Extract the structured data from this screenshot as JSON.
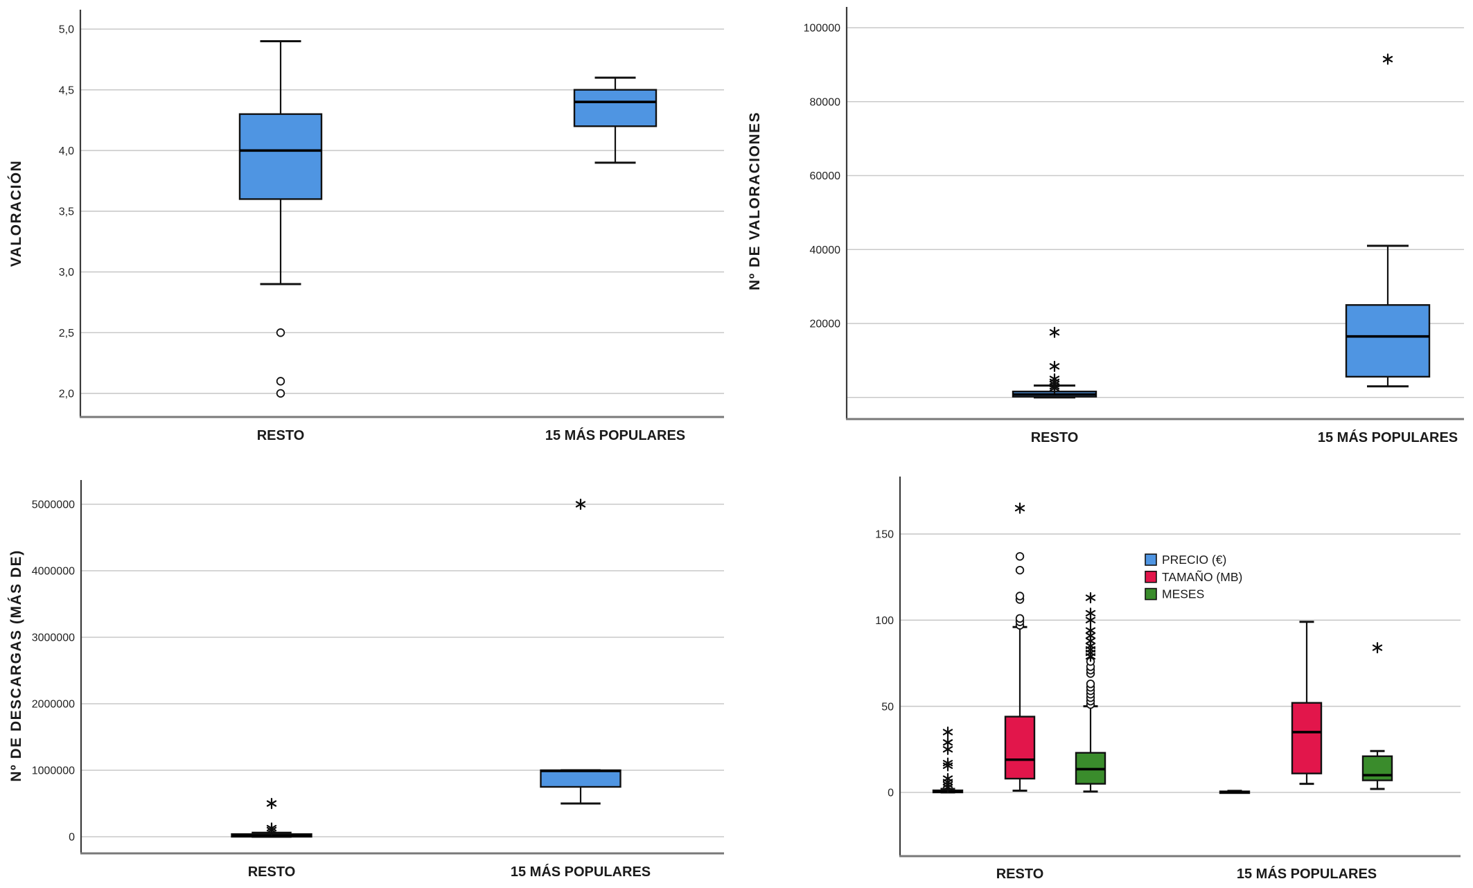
{
  "figure": {
    "background": "#ffffff",
    "grid_color": "#c9c9c9",
    "axis_color": "#3a3a3a",
    "frame_color": "#787878",
    "text_color": "#1a1a1a",
    "box_border_color": "#111111"
  },
  "chart_data": [
    {
      "type": "boxplot",
      "panel": "top-left",
      "ylabel": "VALORACIÓN",
      "xlabel": "",
      "categories": [
        "RESTO",
        "15 MÁS POPULARES"
      ],
      "ytick_values": [
        2.0,
        2.5,
        3.0,
        3.5,
        4.0,
        4.5,
        5.0
      ],
      "ytick_labels": [
        "2,0",
        "2,5",
        "3,0",
        "3,5",
        "4,0",
        "4,5",
        "5,0"
      ],
      "extra_gridlines": [],
      "ylim": [
        1.83,
        5.16
      ],
      "grid": true,
      "legend": null,
      "series": [
        {
          "name": "VALORACIÓN",
          "color": "#4F95E2",
          "boxes": [
            {
              "category": "RESTO",
              "whisker_low": 2.9,
              "q1": 3.6,
              "median": 4.0,
              "q3": 4.3,
              "whisker_high": 4.9,
              "outliers_circle": [
                2.5,
                2.1,
                2.0
              ],
              "outliers_star": []
            },
            {
              "category": "15 MÁS POPULARES",
              "whisker_low": 3.9,
              "q1": 4.2,
              "median": 4.4,
              "q3": 4.5,
              "whisker_high": 4.6,
              "outliers_circle": [],
              "outliers_star": []
            }
          ]
        }
      ]
    },
    {
      "type": "boxplot",
      "panel": "top-right",
      "ylabel": "Nº DE VALORACIONES",
      "xlabel": "",
      "categories": [
        "RESTO",
        "15 MÁS POPULARES"
      ],
      "ytick_values": [
        20000,
        40000,
        60000,
        80000,
        100000
      ],
      "ytick_labels": [
        "20000",
        "40000",
        "60000",
        "80000",
        "100000"
      ],
      "extra_gridlines": [
        0
      ],
      "ylim": [
        -5500,
        104500
      ],
      "grid": true,
      "legend": null,
      "series": [
        {
          "name": "Nº DE VALORACIONES",
          "color": "#4F95E2",
          "boxes": [
            {
              "category": "RESTO",
              "whisker_low": 0,
              "q1": 200,
              "median": 800,
              "q3": 1600,
              "whisker_high": 3200,
              "outliers_circle": [],
              "outliers_star": [
                2500,
                3000,
                3600,
                4200,
                5000,
                8400,
                17600
              ]
            },
            {
              "category": "15 MÁS POPULARES",
              "whisker_low": 3000,
              "q1": 5600,
              "median": 16500,
              "q3": 25000,
              "whisker_high": 41000,
              "outliers_circle": [],
              "outliers_star": [
                91500
              ]
            }
          ]
        }
      ]
    },
    {
      "type": "boxplot",
      "panel": "bottom-left",
      "ylabel": "Nº DE DESCARGAS (MÁS DE)",
      "xlabel": "",
      "categories": [
        "RESTO",
        "15 MÁS POPULARES"
      ],
      "ytick_values": [
        0,
        1000000,
        2000000,
        3000000,
        4000000,
        5000000
      ],
      "ytick_labels": [
        "0",
        "1000000",
        "2000000",
        "3000000",
        "4000000",
        "5000000"
      ],
      "extra_gridlines": [],
      "ylim": [
        -250000,
        5360000
      ],
      "grid": true,
      "legend": null,
      "series": [
        {
          "name": "Nº DE DESCARGAS (MÁS DE)",
          "color": "#4F95E2",
          "boxes": [
            {
              "category": "RESTO",
              "whisker_low": 0,
              "q1": 0,
              "median": 15000,
              "q3": 40000,
              "whisker_high": 60000,
              "outliers_circle": [],
              "outliers_star": [
                500000,
                130000,
                100000
              ]
            },
            {
              "category": "15 MÁS POPULARES",
              "whisker_low": 500000,
              "q1": 750000,
              "median": 990000,
              "q3": 1000000,
              "whisker_high": 1000000,
              "outliers_circle": [],
              "outliers_star": [
                5000000
              ]
            }
          ]
        }
      ]
    },
    {
      "type": "boxplot",
      "panel": "bottom-right",
      "ylabel": "",
      "xlabel": "",
      "categories": [
        "RESTO",
        "15 MÁS POPULARES"
      ],
      "ytick_values": [
        0,
        50,
        100,
        150
      ],
      "ytick_labels": [
        "0",
        "50",
        "100",
        "150"
      ],
      "extra_gridlines": [],
      "ylim": [
        -37,
        183
      ],
      "grid": true,
      "legend": [
        {
          "label": "PRECIO (€)",
          "color": "#4F95E2"
        },
        {
          "label": "TAMAÑO (MB)",
          "color": "#E2164B"
        },
        {
          "label": "MESES",
          "color": "#3A8C2C"
        }
      ],
      "series": [
        {
          "name": "PRECIO (€)",
          "color": "#4F95E2",
          "boxes": [
            {
              "category": "RESTO",
              "whisker_low": 0,
              "q1": 0,
              "median": 0.5,
              "q3": 1.2,
              "whisker_high": 2,
              "outliers_circle": [],
              "outliers_star": [
                35,
                29,
                25,
                17,
                15.5,
                8,
                6,
                4.5,
                3
              ]
            },
            {
              "category": "15 MÁS POPULARES",
              "whisker_low": 0,
              "q1": 0,
              "median": 0.2,
              "q3": 0.6,
              "whisker_high": 0.9,
              "outliers_circle": [],
              "outliers_star": []
            }
          ]
        },
        {
          "name": "TAMAÑO (MB)",
          "color": "#E2164B",
          "boxes": [
            {
              "category": "RESTO",
              "whisker_low": 1,
              "q1": 8,
              "median": 19,
              "q3": 44,
              "whisker_high": 96,
              "outliers_circle": [
                97,
                99,
                101,
                112,
                114,
                129,
                137
              ],
              "outliers_star": [
                165
              ]
            },
            {
              "category": "15 MÁS POPULARES",
              "whisker_low": 5,
              "q1": 11,
              "median": 35,
              "q3": 52,
              "whisker_high": 99,
              "outliers_circle": [],
              "outliers_star": []
            }
          ]
        },
        {
          "name": "MESES",
          "color": "#3A8C2C",
          "boxes": [
            {
              "category": "RESTO",
              "whisker_low": 0.5,
              "q1": 5,
              "median": 13.5,
              "q3": 23,
              "whisker_high": 50,
              "outliers_circle": [
                51,
                53,
                55,
                57,
                59,
                61,
                63,
                69,
                71,
                73,
                76
              ],
              "outliers_star": [
                79,
                81,
                83,
                85,
                88,
                91,
                94,
                100,
                104,
                113
              ]
            },
            {
              "category": "15 MÁS POPULARES",
              "whisker_low": 2,
              "q1": 7,
              "median": 10,
              "q3": 21,
              "whisker_high": 24,
              "outliers_circle": [],
              "outliers_star": [
                84
              ]
            }
          ]
        }
      ]
    }
  ]
}
